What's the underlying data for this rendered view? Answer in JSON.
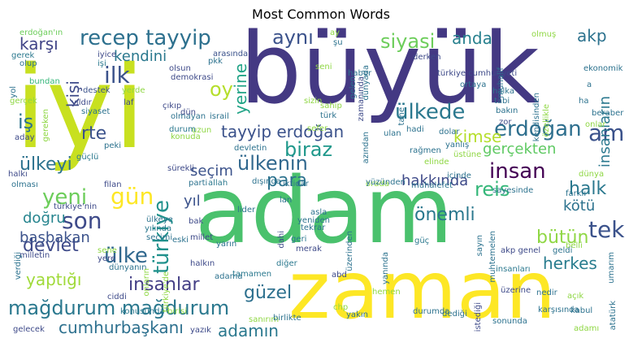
{
  "chart_data": {
    "type": "wordcloud",
    "title": "Most Common Words",
    "palette": "viridis",
    "words": [
      {
        "text": "büyük",
        "weight": 100,
        "color": "#443983"
      },
      {
        "text": "iyi",
        "weight": 92,
        "color": "#c8e020"
      },
      {
        "text": "adam",
        "weight": 90,
        "color": "#4ac16d"
      },
      {
        "text": "zaman",
        "weight": 80,
        "color": "#fde725"
      },
      {
        "text": "recep tayyip",
        "weight": 20,
        "color": "#2d708e"
      },
      {
        "text": "erdoğan",
        "weight": 19,
        "color": "#2e6f8e"
      },
      {
        "text": "mağdurum mağdurum",
        "weight": 19,
        "color": "#2a788e"
      },
      {
        "text": "tayyip erdoğan",
        "weight": 17,
        "color": "#3b528b"
      },
      {
        "text": "insan",
        "weight": 17,
        "color": "#440154"
      },
      {
        "text": "ülkenin",
        "weight": 17,
        "color": "#31688e"
      },
      {
        "text": "türkiye",
        "weight": 17,
        "color": "#21918c"
      },
      {
        "text": "aynı",
        "weight": 16,
        "color": "#3b528b"
      },
      {
        "text": "siyasi",
        "weight": 16,
        "color": "#6ccd5a"
      },
      {
        "text": "anda",
        "weight": 15,
        "color": "#27808e"
      },
      {
        "text": "akp",
        "weight": 15,
        "color": "#2c728e"
      },
      {
        "text": "ilk",
        "weight": 16,
        "color": "#3b528b"
      },
      {
        "text": "kendini",
        "weight": 15,
        "color": "#2a788e"
      },
      {
        "text": "karşı",
        "weight": 15,
        "color": "#414487"
      },
      {
        "text": "ülkede",
        "weight": 16,
        "color": "#2a788e"
      },
      {
        "text": "kimse",
        "weight": 15,
        "color": "#b5de2b"
      },
      {
        "text": "gerçekten",
        "weight": 14,
        "color": "#5ec962"
      },
      {
        "text": "biraz",
        "weight": 16,
        "color": "#1f988b"
      },
      {
        "text": "seçim",
        "weight": 15,
        "color": "#3b528b"
      },
      {
        "text": "reis",
        "weight": 16,
        "color": "#35b779"
      },
      {
        "text": "hakkında",
        "weight": 15,
        "color": "#3e4a89"
      },
      {
        "text": "halk",
        "weight": 16,
        "color": "#2a788e"
      },
      {
        "text": "tek",
        "weight": 18,
        "color": "#3b528b"
      },
      {
        "text": "kötü",
        "weight": 15,
        "color": "#2c728e"
      },
      {
        "text": "bütün",
        "weight": 15,
        "color": "#8fd744"
      },
      {
        "text": "herkes",
        "weight": 15,
        "color": "#287c8e"
      },
      {
        "text": "ülke",
        "weight": 16,
        "color": "#31688e"
      },
      {
        "text": "devlet",
        "weight": 16,
        "color": "#3e4a89"
      },
      {
        "text": "yaptığı",
        "weight": 15,
        "color": "#a0da39"
      },
      {
        "text": "başbakan",
        "weight": 15,
        "color": "#3b528b"
      },
      {
        "text": "son",
        "weight": 17,
        "color": "#3e4a89"
      },
      {
        "text": "gün",
        "weight": 17,
        "color": "#fde725"
      },
      {
        "text": "yeni",
        "weight": 16,
        "color": "#6ccd5a"
      },
      {
        "text": "insanlar",
        "weight": 16,
        "color": "#433e85"
      },
      {
        "text": "güzel",
        "weight": 16,
        "color": "#2d708e"
      },
      {
        "text": "cumhurbaşkanı",
        "weight": 14,
        "color": "#2d708e"
      },
      {
        "text": "adamın",
        "weight": 14,
        "color": "#2a788e"
      },
      {
        "text": "para",
        "weight": 15,
        "color": "#2c728e"
      },
      {
        "text": "önemli",
        "weight": 14,
        "color": "#2a788e"
      },
      {
        "text": "yıl",
        "weight": 14,
        "color": "#3b528b"
      },
      {
        "text": "doğru",
        "weight": 14,
        "color": "#25848e"
      },
      {
        "text": "ülkeyi",
        "weight": 15,
        "color": "#2c728e"
      },
      {
        "text": "rte",
        "weight": 15,
        "color": "#3b528b"
      },
      {
        "text": "iş",
        "weight": 15,
        "color": "#2c728e"
      },
      {
        "text": "oy",
        "weight": 16,
        "color": "#b5de2b"
      },
      {
        "text": "yerine",
        "weight": 14,
        "color": "#20a386"
      },
      {
        "text": "am",
        "weight": 16,
        "color": "#3b528b"
      },
      {
        "text": "insanların",
        "weight": 14,
        "color": "#2a788e"
      },
      {
        "text": "kişi",
        "weight": 14,
        "color": "#3e4a89"
      },
      {
        "text": "erdoğan'ın",
        "weight": 9,
        "color": "#6ccd5a"
      },
      {
        "text": "gerek",
        "weight": 8,
        "color": "#2a788e"
      },
      {
        "text": "olup",
        "weight": 8,
        "color": "#2c728e"
      },
      {
        "text": "yol",
        "weight": 8,
        "color": "#2c728e"
      },
      {
        "text": "bundan",
        "weight": 8,
        "color": "#35b779"
      },
      {
        "text": "gerçek",
        "weight": 8,
        "color": "#8fd744"
      },
      {
        "text": "iyice",
        "weight": 8,
        "color": "#3e4a89"
      },
      {
        "text": "işi",
        "weight": 8,
        "color": "#2a788e"
      },
      {
        "text": "olsun",
        "weight": 8,
        "color": "#3e4a89"
      },
      {
        "text": "arasında",
        "weight": 8,
        "color": "#3b528b"
      },
      {
        "text": "pkk",
        "weight": 8,
        "color": "#2c728e"
      },
      {
        "text": "demokrasi",
        "weight": 8,
        "color": "#3e4a89"
      },
      {
        "text": "destek",
        "weight": 8,
        "color": "#3b528b"
      },
      {
        "text": "yıldır",
        "weight": 8,
        "color": "#3e4a89"
      },
      {
        "text": "siyaset",
        "weight": 8,
        "color": "#2c728e"
      },
      {
        "text": "laf",
        "weight": 8,
        "color": "#3e4a89"
      },
      {
        "text": "yerde",
        "weight": 8,
        "color": "#8fd744"
      },
      {
        "text": "çıkıp",
        "weight": 8,
        "color": "#3e4a89"
      },
      {
        "text": "israil",
        "weight": 8,
        "color": "#2c728e"
      },
      {
        "text": "olmayan",
        "weight": 8,
        "color": "#2c728e"
      },
      {
        "text": "durum",
        "weight": 8,
        "color": "#2a788e"
      },
      {
        "text": "konuda",
        "weight": 8,
        "color": "#8fd744"
      },
      {
        "text": "aday",
        "weight": 8,
        "color": "#3e4a89"
      },
      {
        "text": "peki",
        "weight": 8,
        "color": "#2c728e"
      },
      {
        "text": "güçlü",
        "weight": 8,
        "color": "#2a788e"
      },
      {
        "text": "devletin",
        "weight": 8,
        "color": "#2c728e"
      },
      {
        "text": "sürekli",
        "weight": 8,
        "color": "#3e4a89"
      },
      {
        "text": "halkı",
        "weight": 8,
        "color": "#3e4a89"
      },
      {
        "text": "olması",
        "weight": 8,
        "color": "#2c728e"
      },
      {
        "text": "filan",
        "weight": 8,
        "color": "#3e4a89"
      },
      {
        "text": "parti",
        "weight": 8,
        "color": "#2c728e"
      },
      {
        "text": "allah",
        "weight": 8,
        "color": "#2a788e"
      },
      {
        "text": "dışında",
        "weight": 8,
        "color": "#2c728e"
      },
      {
        "text": "iktidar",
        "weight": 8,
        "color": "#2c728e"
      },
      {
        "text": "türkiye'nin",
        "weight": 8,
        "color": "#3e4a89"
      },
      {
        "text": "ülkeye",
        "weight": 8,
        "color": "#2c728e"
      },
      {
        "text": "yılında",
        "weight": 8,
        "color": "#2a788e"
      },
      {
        "text": "seçimi",
        "weight": 8,
        "color": "#2c728e"
      },
      {
        "text": "sene",
        "weight": 8,
        "color": "#8fd744"
      },
      {
        "text": "milletin",
        "weight": 8,
        "color": "#3e4a89"
      },
      {
        "text": "yere",
        "weight": 8,
        "color": "#3e4a89"
      },
      {
        "text": "verdiği",
        "weight": 8,
        "color": "#2c728e"
      },
      {
        "text": "dünyanın",
        "weight": 8,
        "color": "#2c728e"
      },
      {
        "text": "konusunda",
        "weight": 8,
        "color": "#2a788e"
      },
      {
        "text": "birisi",
        "weight": 8,
        "color": "#8fd744"
      },
      {
        "text": "ciddi",
        "weight": 8,
        "color": "#3e4a89"
      },
      {
        "text": "adama",
        "weight": 8,
        "color": "#2c728e"
      },
      {
        "text": "tamamen",
        "weight": 8,
        "color": "#2a788e"
      },
      {
        "text": "gelecek",
        "weight": 8,
        "color": "#3e4a89"
      },
      {
        "text": "yazık",
        "weight": 8,
        "color": "#3e4a89"
      },
      {
        "text": "sanırım",
        "weight": 8,
        "color": "#8fd744"
      },
      {
        "text": "birlikte",
        "weight": 8,
        "color": "#2c728e"
      },
      {
        "text": "eski",
        "weight": 8,
        "color": "#2c728e"
      },
      {
        "text": "millet",
        "weight": 8,
        "color": "#3e4a89"
      },
      {
        "text": "bak",
        "weight": 8,
        "color": "#3e4a89"
      },
      {
        "text": "lider",
        "weight": 8,
        "color": "#2c728e"
      },
      {
        "text": "lan",
        "weight": 8,
        "color": "#2c728e"
      },
      {
        "text": "yarın",
        "weight": 8,
        "color": "#2c728e"
      },
      {
        "text": "dahi",
        "weight": 8,
        "color": "#3e4a89"
      },
      {
        "text": "geri",
        "weight": 8,
        "color": "#2a788e"
      },
      {
        "text": "tekrar",
        "weight": 8,
        "color": "#2c728e"
      },
      {
        "text": "merak",
        "weight": 8,
        "color": "#3e4a89"
      },
      {
        "text": "asla",
        "weight": 8,
        "color": "#2c728e"
      },
      {
        "text": "yeniden",
        "weight": 8,
        "color": "#2c728e"
      },
      {
        "text": "diğer",
        "weight": 8,
        "color": "#2a788e"
      },
      {
        "text": "abd",
        "weight": 8,
        "color": "#3e4a89"
      },
      {
        "text": "orada",
        "weight": 8,
        "color": "#8fd744"
      },
      {
        "text": "muhalefet",
        "weight": 8,
        "color": "#2c728e"
      },
      {
        "text": "üzerinden",
        "weight": 8,
        "color": "#2c728e"
      },
      {
        "text": "güç",
        "weight": 8,
        "color": "#2a788e"
      },
      {
        "text": "yanında",
        "weight": 8,
        "color": "#2c728e"
      },
      {
        "text": "sayın",
        "weight": 8,
        "color": "#2c728e"
      },
      {
        "text": "muhtemelen",
        "weight": 8,
        "color": "#2c728e"
      },
      {
        "text": "insanları",
        "weight": 8,
        "color": "#2a788e"
      },
      {
        "text": "akp genel",
        "weight": 8,
        "color": "#3e4a89"
      },
      {
        "text": "hemen",
        "weight": 8,
        "color": "#8fd744"
      },
      {
        "text": "chp",
        "weight": 8,
        "color": "#8fd744"
      },
      {
        "text": "yakın",
        "weight": 8,
        "color": "#2c728e"
      },
      {
        "text": "durumda",
        "weight": 8,
        "color": "#2c728e"
      },
      {
        "text": "dediği",
        "weight": 8,
        "color": "#2c728e"
      },
      {
        "text": "istediği",
        "weight": 8,
        "color": "#3e4a89"
      },
      {
        "text": "sonunda",
        "weight": 8,
        "color": "#2c728e"
      },
      {
        "text": "üzerine",
        "weight": 8,
        "color": "#3e4a89"
      },
      {
        "text": "nedir",
        "weight": 8,
        "color": "#2c728e"
      },
      {
        "text": "karşısında",
        "weight": 8,
        "color": "#2c728e"
      },
      {
        "text": "açık",
        "weight": 8,
        "color": "#8fd744"
      },
      {
        "text": "kabul",
        "weight": 8,
        "color": "#2c728e"
      },
      {
        "text": "atatürk",
        "weight": 8,
        "color": "#2c728e"
      },
      {
        "text": "adamı",
        "weight": 8,
        "color": "#8fd744"
      },
      {
        "text": "derken",
        "weight": 8,
        "color": "#3e4a89"
      },
      {
        "text": "haber",
        "weight": 8,
        "color": "#2c728e"
      },
      {
        "text": "türkiye cumhuriyeti",
        "weight": 8,
        "color": "#3e4a89"
      },
      {
        "text": "ortaya",
        "weight": 8,
        "color": "#2c728e"
      },
      {
        "text": "halka",
        "weight": 8,
        "color": "#2c728e"
      },
      {
        "text": "tabi",
        "weight": 8,
        "color": "#2c728e"
      },
      {
        "text": "bakın",
        "weight": 8,
        "color": "#2c728e"
      },
      {
        "text": "zor",
        "weight": 8,
        "color": "#3e4a89"
      },
      {
        "text": "dolar",
        "weight": 8,
        "color": "#2c728e"
      },
      {
        "text": "hadi",
        "weight": 8,
        "color": "#2c728e"
      },
      {
        "text": "ulan",
        "weight": 8,
        "color": "#2c728e"
      },
      {
        "text": "tane",
        "weight": 8,
        "color": "#2c728e"
      },
      {
        "text": "sizin",
        "weight": 8,
        "color": "#8fd744"
      },
      {
        "text": "türk",
        "weight": 8,
        "color": "#2c728e"
      },
      {
        "text": "sefer",
        "weight": 8,
        "color": "#8fd744"
      },
      {
        "text": "elinde",
        "weight": 8,
        "color": "#8fd744"
      },
      {
        "text": "yanlış",
        "weight": 8,
        "color": "#2c728e"
      },
      {
        "text": "üstüne",
        "weight": 8,
        "color": "#8fd744"
      },
      {
        "text": "rağmen",
        "weight": 8,
        "color": "#2c728e"
      },
      {
        "text": "içinde",
        "weight": 8,
        "color": "#2c728e"
      },
      {
        "text": "sayesinde",
        "weight": 8,
        "color": "#2c728e"
      },
      {
        "text": "yüzünden",
        "weight": 8,
        "color": "#2c728e"
      },
      {
        "text": "farklı",
        "weight": 8,
        "color": "#2c728e"
      },
      {
        "text": "dünya",
        "weight": 8,
        "color": "#8fd744"
      },
      {
        "text": "belli",
        "weight": 8,
        "color": "#8fd744"
      },
      {
        "text": "geldi",
        "weight": 8,
        "color": "#2c728e"
      },
      {
        "text": "umarım",
        "weight": 8,
        "color": "#2c728e"
      },
      {
        "text": "olmuş",
        "weight": 8,
        "color": "#8fd744"
      },
      {
        "text": "ekonomik",
        "weight": 8,
        "color": "#2c728e"
      },
      {
        "text": "beraber",
        "weight": 8,
        "color": "#2c728e"
      },
      {
        "text": "onlar",
        "weight": 8,
        "color": "#8fd744"
      },
      {
        "text": "ha",
        "weight": 8,
        "color": "#2c728e"
      },
      {
        "text": "a",
        "weight": 8,
        "color": "#2c728e"
      },
      {
        "text": "muhalif",
        "weight": 8,
        "color": "#2c728e"
      },
      {
        "text": "kendisinden",
        "weight": 8,
        "color": "#2c728e"
      },
      {
        "text": "özellikle",
        "weight": 8,
        "color": "#8fd744"
      },
      {
        "text": "azından",
        "weight": 8,
        "color": "#2c728e"
      },
      {
        "text": "zamanında",
        "weight": 8,
        "color": "#3e4a89"
      },
      {
        "text": "gelen",
        "weight": 8,
        "color": "#2c728e"
      },
      {
        "text": "dünyada",
        "weight": 8,
        "color": "#2c728e"
      },
      {
        "text": "sahip",
        "weight": 8,
        "color": "#8fd744"
      },
      {
        "text": "seni",
        "weight": 8,
        "color": "#8fd744"
      },
      {
        "text": "ay",
        "weight": 8,
        "color": "#8fd744"
      },
      {
        "text": "şu",
        "weight": 8,
        "color": "#2c728e"
      },
      {
        "text": "dün",
        "weight": 8,
        "color": "#3e4a89"
      },
      {
        "text": "uzun",
        "weight": 8,
        "color": "#8fd744"
      },
      {
        "text": "halkın",
        "weight": 8,
        "color": "#3e4a89"
      },
      {
        "text": "türkiye'de",
        "weight": 8,
        "color": "#8fd744"
      },
      {
        "text": "onların",
        "weight": 8,
        "color": "#8fd744"
      },
      {
        "text": "gereken",
        "weight": 8,
        "color": "#8fd744"
      }
    ]
  }
}
